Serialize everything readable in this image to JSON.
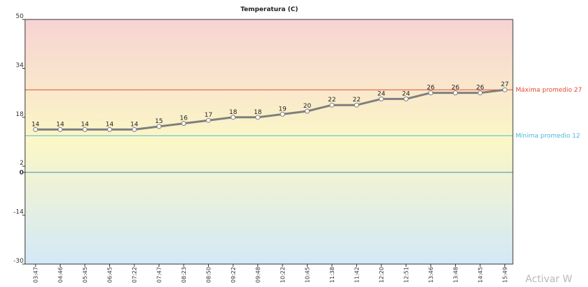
{
  "chart_data": {
    "type": "line",
    "title": "Temperatura (C)",
    "xlabel": "",
    "ylabel": "",
    "ylim": [
      -30,
      50
    ],
    "yticks": [
      50,
      34,
      18,
      2,
      0,
      -14,
      -30
    ],
    "grid": false,
    "categories": [
      "03:47",
      "04:46",
      "05:45",
      "06:45",
      "07:22",
      "07:47",
      "08:23",
      "08:50",
      "09:22",
      "09:48",
      "10:22",
      "10:45",
      "11:38",
      "11:42",
      "12:20",
      "12:51",
      "13:46",
      "13:48",
      "14:45",
      "15:49"
    ],
    "series": [
      {
        "values": [
          14,
          14,
          14,
          14,
          14,
          15,
          16,
          17,
          18,
          18,
          19,
          20,
          22,
          22,
          24,
          24,
          26,
          26,
          26,
          27
        ]
      }
    ],
    "reference_lines": [
      {
        "label": "Máxima promedio 27",
        "value": 27,
        "color": "#e34a2c",
        "show_label": true
      },
      {
        "label": "Mínima promedio 12",
        "value": 12,
        "color": "#4fb8d8",
        "show_label": true
      },
      {
        "label": "",
        "value": 0,
        "color": "#2f8fb4",
        "show_label": false
      }
    ],
    "colors": {
      "line": "#7f7f7f",
      "gradient_top": "#f7d3d3",
      "gradient_mid": "#fbf7c6",
      "gradient_bottom": "#d3e9f8",
      "zero_label": "#1f6ea3"
    }
  },
  "watermark": "Activar W"
}
